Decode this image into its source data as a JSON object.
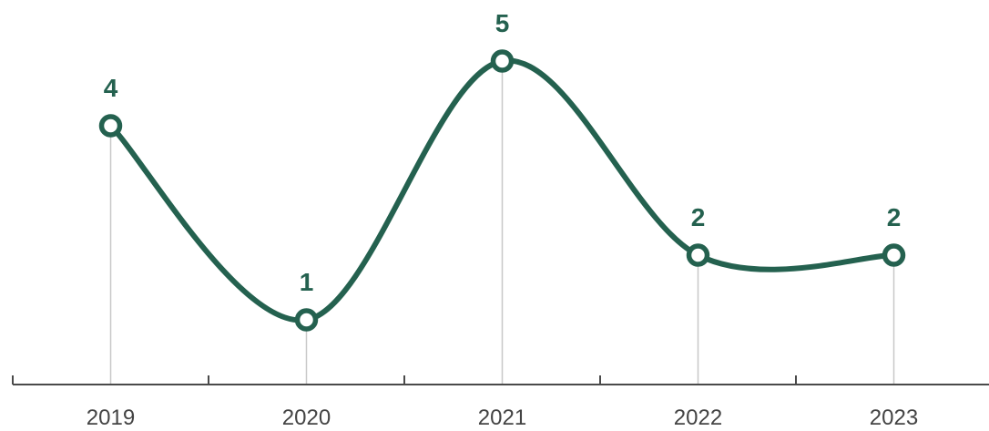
{
  "chart_data": {
    "type": "line",
    "categories": [
      "2019",
      "2020",
      "2021",
      "2022",
      "2023"
    ],
    "series": [
      {
        "values": [
          4,
          1,
          5,
          2,
          2
        ]
      }
    ],
    "title": "",
    "xlabel": "",
    "ylabel": "",
    "ylim": [
      0,
      5.6
    ],
    "smooth": true,
    "markers": "hollow-circle",
    "data_labels": true,
    "drop_lines": true,
    "grid": false,
    "legend": "none",
    "colors": {
      "line": "#24614f",
      "marker_fill": "#ffffff",
      "drop_line": "#c8c8c8",
      "axis": "#4a4a4a",
      "tick_text": "#444444",
      "label_text": "#24614f"
    }
  }
}
